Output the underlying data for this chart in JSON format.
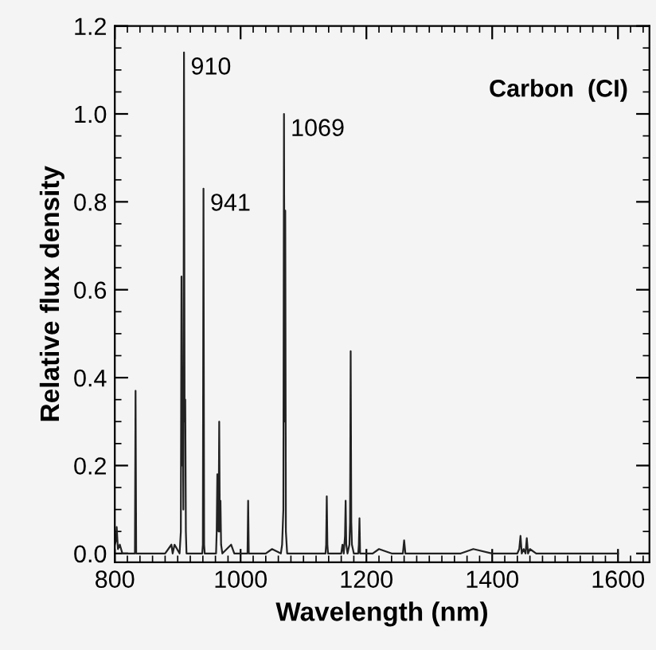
{
  "chart_data": {
    "type": "line",
    "title": "Carbon  (CI)",
    "xlabel": "Wavelength (nm)",
    "ylabel": "Relative flux density",
    "xlim": [
      800,
      1650
    ],
    "ylim": [
      -0.02,
      1.2
    ],
    "xticks": [
      800,
      1000,
      1200,
      1400,
      1600
    ],
    "yticks": [
      {
        "value": 0.0,
        "label": "0.0"
      },
      {
        "value": 0.2,
        "label": "0.2"
      },
      {
        "value": 0.4,
        "label": "0.4"
      },
      {
        "value": 0.6,
        "label": "0.6"
      },
      {
        "value": 0.8,
        "label": "0.8"
      },
      {
        "value": 1.0,
        "label": "1.0"
      },
      {
        "value": 1.2,
        "label": "1.2"
      }
    ],
    "grid": false,
    "legend": false,
    "marker": "none",
    "line_style": "solid",
    "series": [
      {
        "color": "#222222",
        "x": [
          800,
          802,
          803,
          805,
          808,
          812,
          830,
          832,
          833,
          834,
          836,
          880,
          890,
          892,
          895,
          903,
          905,
          906,
          907,
          908,
          909,
          910,
          911,
          912,
          913,
          914,
          925,
          939,
          940,
          941,
          942,
          943,
          955,
          961,
          962,
          963,
          964,
          965,
          966,
          967,
          968,
          969,
          971,
          985,
          990,
          1010,
          1011,
          1012,
          1013,
          1014,
          1040,
          1050,
          1064,
          1066,
          1068,
          1069,
          1070,
          1071,
          1072,
          1074,
          1080,
          1100,
          1135,
          1136,
          1137,
          1138,
          1139,
          1150,
          1160,
          1162,
          1164,
          1166,
          1167,
          1168,
          1170,
          1173,
          1174,
          1175,
          1176,
          1177,
          1180,
          1187,
          1188,
          1189,
          1190,
          1192,
          1210,
          1220,
          1240,
          1258,
          1260,
          1262,
          1300,
          1350,
          1370,
          1400,
          1440,
          1443,
          1445,
          1447,
          1450,
          1453,
          1455,
          1457,
          1460,
          1470,
          1480,
          1500,
          1600
        ],
        "values": [
          0.02,
          0.03,
          0.06,
          0.01,
          0.02,
          0.0,
          0.0,
          0.0,
          0.37,
          0.0,
          0.0,
          0.0,
          0.02,
          0.0,
          0.02,
          0.0,
          0.05,
          0.63,
          0.2,
          0.4,
          0.1,
          1.14,
          0.3,
          0.35,
          0.05,
          0.0,
          0.0,
          0.0,
          0.02,
          0.83,
          0.02,
          0.0,
          0.0,
          0.0,
          0.05,
          0.18,
          0.06,
          0.05,
          0.3,
          0.05,
          0.12,
          0.02,
          0.0,
          0.02,
          0.0,
          0.0,
          0.0,
          0.12,
          0.0,
          0.0,
          0.0,
          0.01,
          0.0,
          0.02,
          0.1,
          1.0,
          0.3,
          0.78,
          0.05,
          0.0,
          0.0,
          0.0,
          0.0,
          0.02,
          0.13,
          0.02,
          0.0,
          0.0,
          0.0,
          0.02,
          0.0,
          0.04,
          0.12,
          0.02,
          0.0,
          0.02,
          0.07,
          0.46,
          0.07,
          0.02,
          0.0,
          0.0,
          0.02,
          0.08,
          0.0,
          0.0,
          0.0,
          0.01,
          0.0,
          0.0,
          0.03,
          0.0,
          0.0,
          0.0,
          0.01,
          0.0,
          0.0,
          0.01,
          0.04,
          0.0,
          0.01,
          0.0,
          0.035,
          0.0,
          0.01,
          0.0,
          0.0,
          0.0,
          0.0
        ]
      }
    ],
    "annotations": [
      {
        "text": "910",
        "x": 910,
        "y": 1.14
      },
      {
        "text": "941",
        "x": 941,
        "y": 0.83
      },
      {
        "text": "1069",
        "x": 1069,
        "y": 1.0
      }
    ]
  }
}
